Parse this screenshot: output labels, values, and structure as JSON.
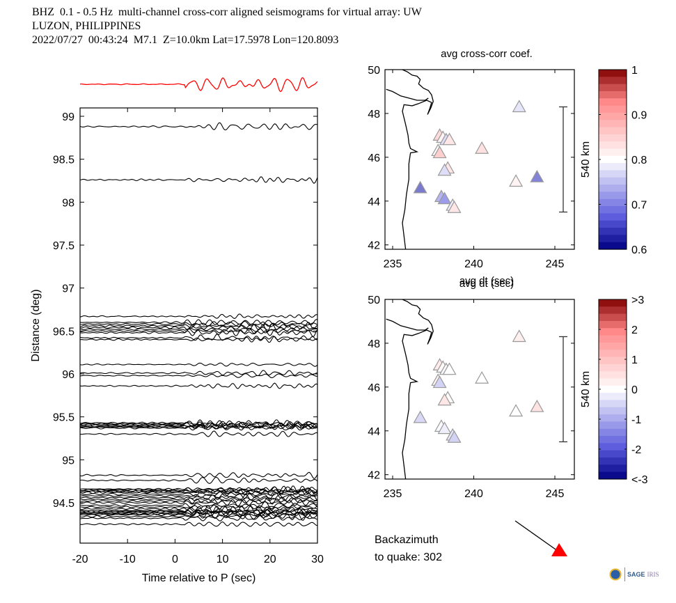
{
  "header": {
    "line1": "BHZ  0.1 - 0.5 Hz  multi-channel cross-corr aligned seismograms for virtual array: UW",
    "line2": "LUZON, PHILIPPINES",
    "line3": "2022/07/27  00:43:24  M7.1  Z=10.0km Lat=17.5978 Lon=120.8093"
  },
  "backazimuth": {
    "label1": "Backazimuth",
    "label2": "to quake:  302",
    "value": 302,
    "marker_color": "#ff0000"
  },
  "logo": {
    "text": "SAGE",
    "text2": "IRIS"
  },
  "chart_data": [
    {
      "type": "line",
      "id": "seismograms",
      "title": "",
      "xlabel": "Time relative to P (sec)",
      "ylabel": "Distance (deg)",
      "xlim": [
        -20,
        30
      ],
      "ylim": [
        94.05,
        99.1
      ],
      "xticks": [
        -20,
        -10,
        0,
        10,
        20,
        30
      ],
      "xtick_labels": [
        "-20",
        "-10",
        "0",
        "10",
        "20",
        "30"
      ],
      "yticks": [
        94.5,
        95,
        95.5,
        96,
        96.5,
        97,
        97.5,
        98,
        98.5,
        99
      ],
      "ytick_labels": [
        "94.5",
        "95",
        "95.5",
        "96",
        "96.5",
        "97",
        "97.5",
        "98",
        "98.5",
        "99"
      ],
      "stack_trace_color": "#ff0000",
      "trace_color": "#000000",
      "trace_offsets_deg": [
        98.88,
        98.26,
        96.67,
        96.6,
        96.58,
        96.56,
        96.54,
        96.52,
        96.5,
        96.48,
        96.42,
        96.4,
        96.11,
        96.01,
        95.98,
        95.86,
        95.43,
        95.42,
        95.41,
        95.4,
        95.39,
        95.38,
        95.37,
        95.3,
        94.82,
        94.76,
        94.66,
        94.65,
        94.64,
        94.63,
        94.62,
        94.6,
        94.58,
        94.56,
        94.54,
        94.52,
        94.5,
        94.47,
        94.45,
        94.43,
        94.41,
        94.4,
        94.39,
        94.38,
        94.37,
        94.36,
        94.34,
        94.32,
        94.25
      ]
    },
    {
      "type": "scatter",
      "id": "map-coef",
      "title": "avg cross-corr coef.",
      "xlabel": "avg dt (sec)",
      "xlim": [
        234.6,
        246.2
      ],
      "ylim": [
        41.8,
        50
      ],
      "xticks": [
        235,
        240,
        245
      ],
      "xtick_labels": [
        "235",
        "240",
        "245"
      ],
      "yticks": [
        42,
        44,
        46,
        48,
        50
      ],
      "ytick_labels": [
        "42",
        "44",
        "46",
        "48",
        "50"
      ],
      "scale_bar_label": "540 km",
      "colorbar": {
        "range": [
          0.6,
          1.0
        ],
        "ticks": [
          "1",
          "0.9",
          "0.8",
          "0.7",
          "0.6"
        ]
      },
      "stations": [
        {
          "lon": 242.8,
          "lat": 48.3,
          "value": 0.77
        },
        {
          "lon": 237.9,
          "lat": 47.0,
          "value": 0.86
        },
        {
          "lon": 238.1,
          "lat": 46.9,
          "value": 0.82
        },
        {
          "lon": 238.3,
          "lat": 46.8,
          "value": 0.76
        },
        {
          "lon": 238.5,
          "lat": 46.8,
          "value": 0.84
        },
        {
          "lon": 240.5,
          "lat": 46.4,
          "value": 0.85
        },
        {
          "lon": 237.8,
          "lat": 46.3,
          "value": 0.81
        },
        {
          "lon": 237.9,
          "lat": 46.2,
          "value": 0.88
        },
        {
          "lon": 238.4,
          "lat": 45.5,
          "value": 0.84
        },
        {
          "lon": 238.2,
          "lat": 45.4,
          "value": 0.76
        },
        {
          "lon": 243.9,
          "lat": 45.1,
          "value": 0.65
        },
        {
          "lon": 242.6,
          "lat": 44.9,
          "value": 0.82
        },
        {
          "lon": 236.7,
          "lat": 44.6,
          "value": 0.64
        },
        {
          "lon": 238.0,
          "lat": 44.2,
          "value": 0.71
        },
        {
          "lon": 238.2,
          "lat": 44.1,
          "value": 0.68
        },
        {
          "lon": 238.7,
          "lat": 43.8,
          "value": 0.78
        },
        {
          "lon": 238.8,
          "lat": 43.7,
          "value": 0.84
        }
      ]
    },
    {
      "type": "scatter",
      "id": "map-dt",
      "title": "avg dt (sec)",
      "xlabel": "",
      "xlim": [
        234.6,
        246.2
      ],
      "ylim": [
        41.8,
        50
      ],
      "xticks": [
        235,
        240,
        245
      ],
      "xtick_labels": [
        "235",
        "240",
        "245"
      ],
      "yticks": [
        42,
        44,
        46,
        48,
        50
      ],
      "ytick_labels": [
        "42",
        "44",
        "46",
        "48",
        "50"
      ],
      "scale_bar_label": "540 km",
      "colorbar": {
        "range": [
          -3,
          3
        ],
        "ticks": [
          ">3",
          "2",
          "1",
          "0",
          "-1",
          "-2",
          "<-3"
        ]
      },
      "stations": [
        {
          "lon": 242.8,
          "lat": 48.3,
          "value": 0.4
        },
        {
          "lon": 237.9,
          "lat": 47.0,
          "value": 0.5
        },
        {
          "lon": 238.1,
          "lat": 46.9,
          "value": 0.1
        },
        {
          "lon": 238.3,
          "lat": 46.8,
          "value": -0.1
        },
        {
          "lon": 238.5,
          "lat": 46.8,
          "value": 0.0
        },
        {
          "lon": 240.5,
          "lat": 46.4,
          "value": 0.0
        },
        {
          "lon": 237.8,
          "lat": 46.3,
          "value": 0.3
        },
        {
          "lon": 237.9,
          "lat": 46.2,
          "value": -0.8
        },
        {
          "lon": 238.4,
          "lat": 45.5,
          "value": 0.1
        },
        {
          "lon": 238.2,
          "lat": 45.4,
          "value": 0.6
        },
        {
          "lon": 243.9,
          "lat": 45.1,
          "value": 0.7
        },
        {
          "lon": 242.6,
          "lat": 44.9,
          "value": 0.0
        },
        {
          "lon": 236.7,
          "lat": 44.6,
          "value": -0.7
        },
        {
          "lon": 238.0,
          "lat": 44.2,
          "value": -0.1
        },
        {
          "lon": 238.2,
          "lat": 44.1,
          "value": -0.3
        },
        {
          "lon": 238.7,
          "lat": 43.8,
          "value": -0.4
        },
        {
          "lon": 238.8,
          "lat": 43.7,
          "value": -0.8
        }
      ]
    }
  ]
}
